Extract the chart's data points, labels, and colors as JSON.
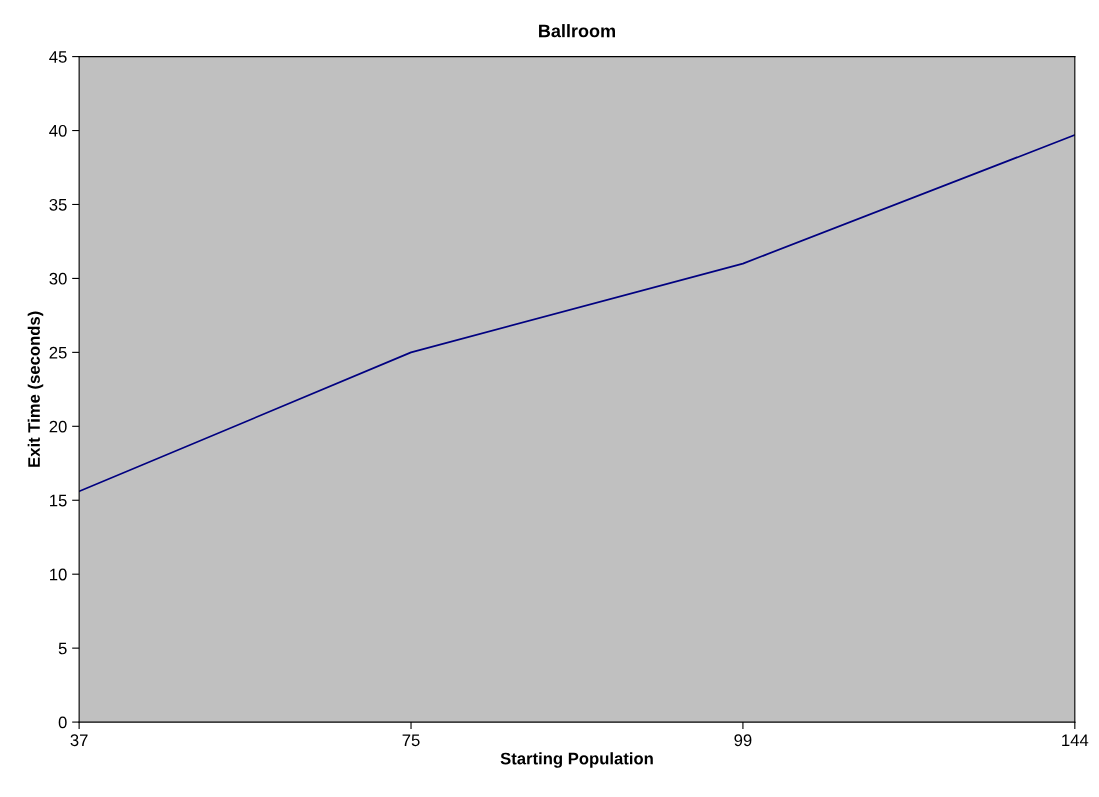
{
  "chart_data": {
    "type": "line",
    "title": "Ballroom",
    "xlabel": "Starting Population",
    "ylabel": "Exit Time (seconds)",
    "categories": [
      "37",
      "75",
      "99",
      "144"
    ],
    "series": [
      {
        "color": "#000080",
        "values": [
          15.6,
          25.0,
          31.0,
          39.7
        ]
      }
    ],
    "ylim": [
      0,
      45
    ],
    "yticks": [
      0,
      5,
      10,
      15,
      20,
      25,
      30,
      35,
      40,
      45
    ],
    "grid": false,
    "marker": "none",
    "line_style": "solid"
  }
}
